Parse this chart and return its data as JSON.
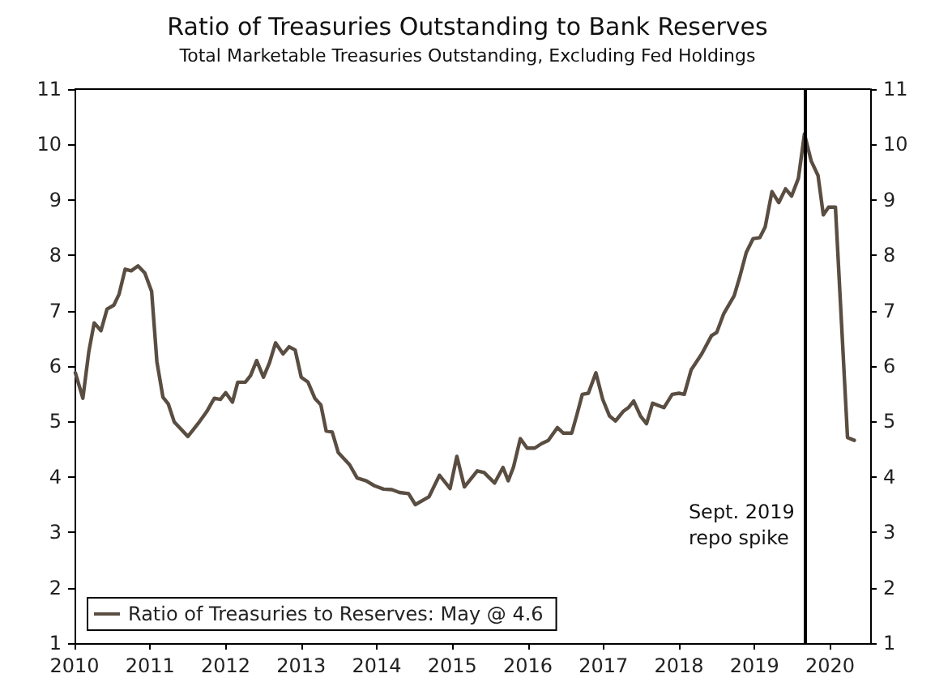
{
  "chart_data": {
    "type": "line",
    "title": "Ratio of Treasuries Outstanding to Bank Reserves",
    "subtitle": "Total Marketable Treasuries Outstanding, Excluding Fed Holdings",
    "x": [
      2010.01,
      2010.11,
      2010.19,
      2010.26,
      2010.35,
      2010.43,
      2010.52,
      2010.59,
      2010.67,
      2010.75,
      2010.84,
      2010.93,
      2011.02,
      2011.09,
      2011.17,
      2011.24,
      2011.32,
      2011.5,
      2011.65,
      2011.75,
      2011.85,
      2011.93,
      2012.0,
      2012.09,
      2012.16,
      2012.26,
      2012.33,
      2012.41,
      2012.5,
      2012.58,
      2012.66,
      2012.76,
      2012.84,
      2012.92,
      2013.0,
      2013.09,
      2013.18,
      2013.26,
      2013.33,
      2013.41,
      2013.49,
      2013.64,
      2013.74,
      2013.86,
      2013.97,
      2014.09,
      2014.2,
      2014.3,
      2014.42,
      2014.51,
      2014.69,
      2014.83,
      2014.97,
      2015.06,
      2015.16,
      2015.33,
      2015.42,
      2015.56,
      2015.67,
      2015.74,
      2015.81,
      2015.9,
      2015.99,
      2016.09,
      2016.18,
      2016.27,
      2016.39,
      2016.47,
      2016.58,
      2016.65,
      2016.72,
      2016.8,
      2016.9,
      2016.99,
      2017.08,
      2017.16,
      2017.26,
      2017.33,
      2017.4,
      2017.49,
      2017.57,
      2017.65,
      2017.8,
      2017.91,
      2018.0,
      2018.07,
      2018.16,
      2018.3,
      2018.43,
      2018.5,
      2018.59,
      2018.73,
      2018.8,
      2018.89,
      2018.98,
      2019.07,
      2019.14,
      2019.23,
      2019.32,
      2019.41,
      2019.49,
      2019.58,
      2019.66,
      2019.75,
      2019.84,
      2019.91,
      2019.98,
      2020.07,
      2020.23,
      2020.32
    ],
    "series": [
      {
        "name": "Ratio of Treasuries to Reserves: May @ 4.6",
        "color": "#5a4d41",
        "values": [
          5.88,
          5.42,
          6.27,
          6.78,
          6.64,
          7.03,
          7.1,
          7.3,
          7.75,
          7.72,
          7.81,
          7.68,
          7.35,
          6.08,
          5.44,
          5.32,
          4.99,
          4.73,
          4.99,
          5.18,
          5.42,
          5.4,
          5.52,
          5.35,
          5.71,
          5.71,
          5.83,
          6.1,
          5.8,
          6.06,
          6.42,
          6.22,
          6.35,
          6.29,
          5.8,
          5.71,
          5.42,
          5.3,
          4.83,
          4.81,
          4.44,
          4.22,
          3.98,
          3.93,
          3.84,
          3.78,
          3.77,
          3.72,
          3.7,
          3.5,
          3.64,
          4.03,
          3.79,
          4.37,
          3.82,
          4.11,
          4.08,
          3.89,
          4.17,
          3.93,
          4.18,
          4.69,
          4.52,
          4.52,
          4.6,
          4.66,
          4.89,
          4.79,
          4.79,
          5.13,
          5.49,
          5.51,
          5.88,
          5.4,
          5.1,
          5.01,
          5.18,
          5.25,
          5.37,
          5.1,
          4.96,
          5.33,
          5.25,
          5.49,
          5.51,
          5.49,
          5.93,
          6.22,
          6.55,
          6.61,
          6.94,
          7.27,
          7.59,
          8.05,
          8.3,
          8.32,
          8.51,
          9.15,
          8.95,
          9.2,
          9.07,
          9.39,
          10.19,
          9.7,
          9.44,
          8.73,
          8.87,
          8.87,
          4.71,
          4.66
        ]
      }
    ],
    "xlim": [
      2010,
      2020.53
    ],
    "xticks": [
      2010,
      2011,
      2012,
      2013,
      2014,
      2015,
      2016,
      2017,
      2018,
      2019,
      2020
    ],
    "ylim": [
      1,
      11
    ],
    "yticks": [
      1,
      2,
      3,
      4,
      5,
      6,
      7,
      8,
      9,
      10,
      11
    ],
    "y2lim": [
      1,
      11
    ],
    "y2ticks": [
      1,
      2,
      3,
      4,
      5,
      6,
      7,
      8,
      9,
      10,
      11
    ],
    "ref_lines": [
      {
        "axis": "x",
        "value": 2019.66,
        "label": "Sept. 2019\nrepo spike",
        "color": "#000000"
      }
    ],
    "grid": false,
    "legend": "bottom left",
    "marker": "none",
    "line_style": "solid"
  }
}
